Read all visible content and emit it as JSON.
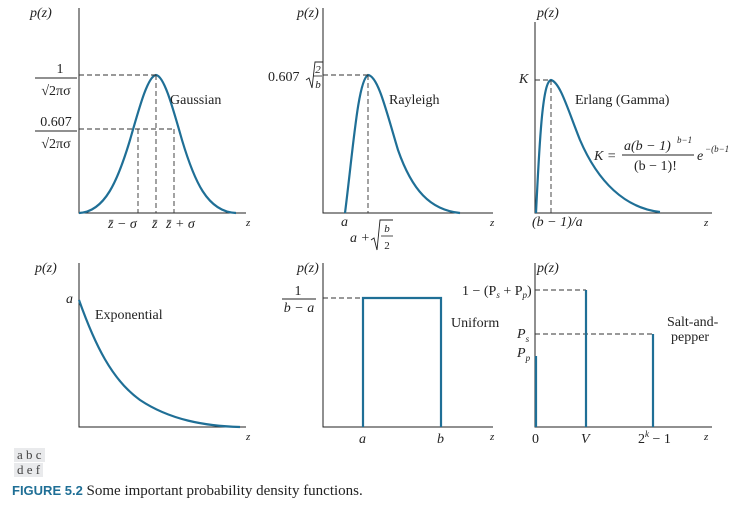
{
  "panels": {
    "a": {
      "ylabel": "p(z)",
      "xlabel": "z",
      "name": "Gaussian",
      "peak_num": "1",
      "peak_den": "√2πσ",
      "mid_num": "0.607",
      "mid_den": "√2πσ",
      "tick_left": "z̄ − σ",
      "tick_mid": "z̄",
      "tick_right": "z̄ + σ"
    },
    "b": {
      "ylabel": "p(z)",
      "xlabel": "z",
      "name": "Rayleigh",
      "peak_label": "0.607",
      "peak_frac_num": "2",
      "peak_frac_den": "b",
      "tick_a": "a",
      "tick_peak": "a +",
      "tick_peak_num": "b",
      "tick_peak_den": "2"
    },
    "c": {
      "ylabel": "p(z)",
      "xlabel": "z",
      "name": "Erlang (Gamma)",
      "peak_label": "K",
      "tick": "(b − 1)/a",
      "formula_lhs": "K =",
      "formula_num": "a(b − 1)",
      "formula_num_exp": "b−1",
      "formula_den": "(b − 1)!",
      "formula_tail": "e",
      "formula_tail_exp": "−(b−1"
    },
    "d": {
      "ylabel": "p(z)",
      "xlabel": "z",
      "name": "Exponential",
      "start_label": "a"
    },
    "e": {
      "ylabel": "p(z)",
      "xlabel": "z",
      "name": "Uniform",
      "level_num": "1",
      "level_den": "b − a",
      "tick_a": "a",
      "tick_b": "b"
    },
    "f": {
      "ylabel": "p(z)",
      "xlabel": "z",
      "name_line1": "Salt-and-",
      "name_line2": "pepper",
      "level_high": "1 − (P",
      "level_high_s": "s",
      "level_high_mid": " + P",
      "level_high_p": "p",
      "level_high_end": ")",
      "ps": "P",
      "ps_sub": "s",
      "pp": "P",
      "pp_sub": "p",
      "tick_0": "0",
      "tick_v": "V",
      "tick_max": "2",
      "tick_max_exp": "k",
      "tick_max_end": " − 1"
    }
  },
  "grid_labels": {
    "row1": "a b c",
    "row2": "d e f"
  },
  "caption": {
    "figure": "FIGURE 5.2",
    "text": " Some important probability density functions."
  },
  "colors": {
    "curve": "#1f6f96"
  }
}
